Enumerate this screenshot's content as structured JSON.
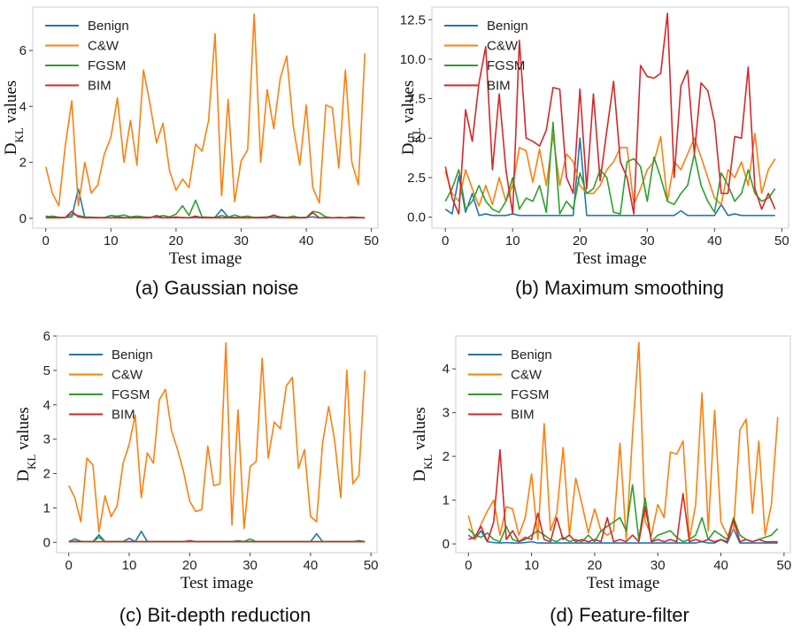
{
  "colors": {
    "Benign": "#1f77b4",
    "C&W": "#ff7f0e",
    "FGSM": "#2ca02c",
    "BIM": "#d62728"
  },
  "chart_data": [
    {
      "type": "line",
      "caption": "(a) Gaussian noise",
      "xlabel": "Test image",
      "ylabel": "D_KL values",
      "xlim": [
        -2,
        51
      ],
      "ylim": [
        -0.35,
        7.55
      ],
      "xticks": [
        0,
        10,
        20,
        30,
        40,
        50
      ],
      "yticks": [
        0,
        2,
        4,
        6
      ],
      "grid": false,
      "legend": "upper-left",
      "series": [
        {
          "name": "Benign",
          "values": [
            0.08,
            0.05,
            0.04,
            0.03,
            0.05,
            1.05,
            0.02,
            0.03,
            0.02,
            0.03,
            0.1,
            0.05,
            0.03,
            0.02,
            0.03,
            0.02,
            0.04,
            0.03,
            0.02,
            0.03,
            0.02,
            0.03,
            0.02,
            0.03,
            0.02,
            0.03,
            0.04,
            0.32,
            0.05,
            0.03,
            0.03,
            0.02,
            0.04,
            0.03,
            0.03,
            0.03,
            0.02,
            0.03,
            0.02,
            0.03,
            0.03,
            0.05,
            0.02,
            0.03,
            0.02,
            0.03,
            0.02,
            0.03,
            0.03,
            0.02
          ]
        },
        {
          "name": "C&W",
          "values": [
            1.85,
            0.9,
            0.45,
            2.6,
            4.2,
            0.45,
            2.0,
            0.9,
            1.2,
            2.3,
            2.9,
            4.3,
            2.0,
            3.5,
            1.9,
            5.3,
            4.1,
            2.7,
            3.4,
            1.7,
            1.0,
            1.4,
            1.1,
            2.65,
            2.4,
            3.5,
            6.6,
            0.8,
            4.25,
            0.6,
            2.05,
            2.45,
            7.3,
            2.0,
            4.6,
            3.2,
            5.0,
            5.8,
            3.3,
            1.9,
            4.05,
            1.1,
            0.55,
            4.05,
            3.95,
            1.8,
            5.3,
            2.0,
            1.2,
            5.9
          ]
        },
        {
          "name": "FGSM",
          "values": [
            0.05,
            0.08,
            0.04,
            0.03,
            0.15,
            0.1,
            0.05,
            0.04,
            0.03,
            0.02,
            0.1,
            0.08,
            0.12,
            0.05,
            0.08,
            0.05,
            0.03,
            0.05,
            0.1,
            0.05,
            0.15,
            0.45,
            0.1,
            0.65,
            0.05,
            0.04,
            0.02,
            0.1,
            0.04,
            0.12,
            0.05,
            0.08,
            0.03,
            0.04,
            0.05,
            0.1,
            0.05,
            0.03,
            0.08,
            0.02,
            0.03,
            0.25,
            0.2,
            0.05,
            0.02,
            0.03,
            0.02,
            0.05,
            0.03,
            0.02
          ]
        },
        {
          "name": "BIM",
          "values": [
            0.02,
            0.02,
            0.02,
            0.03,
            0.25,
            0.05,
            0.02,
            0.02,
            0.02,
            0.02,
            0.02,
            0.02,
            0.02,
            0.02,
            0.02,
            0.02,
            0.02,
            0.1,
            0.02,
            0.02,
            0.05,
            0.02,
            0.02,
            0.08,
            0.02,
            0.02,
            0.02,
            0.02,
            0.02,
            0.02,
            0.02,
            0.02,
            0.02,
            0.02,
            0.02,
            0.12,
            0.02,
            0.02,
            0.02,
            0.02,
            0.02,
            0.2,
            0.02,
            0.02,
            0.02,
            0.02,
            0.02,
            0.02,
            0.02,
            0.02
          ]
        }
      ]
    },
    {
      "type": "line",
      "caption": "(b) Maximum smoothing",
      "xlabel": "Test image",
      "ylabel": "D_KL values",
      "xlim": [
        -2,
        51
      ],
      "ylim": [
        -0.7,
        13.3
      ],
      "xticks": [
        0,
        10,
        20,
        30,
        40,
        50
      ],
      "yticks": [
        0.0,
        2.5,
        5.0,
        7.5,
        10.0,
        12.5
      ],
      "ytick_labels": [
        "0.0",
        "2.5",
        "5.0",
        "7.5",
        "10.0",
        "12.5"
      ],
      "grid": false,
      "legend": "upper-left",
      "series": [
        {
          "name": "Benign",
          "values": [
            0.5,
            0.2,
            2.6,
            0.3,
            1.5,
            0.1,
            0.2,
            0.1,
            0.1,
            0.1,
            0.2,
            0.1,
            0.1,
            0.1,
            0.1,
            0.1,
            0.1,
            0.1,
            0.1,
            0.1,
            5.0,
            0.1,
            0.1,
            0.1,
            0.1,
            0.1,
            0.1,
            0.1,
            0.1,
            0.1,
            0.1,
            0.1,
            0.1,
            0.1,
            0.1,
            0.4,
            0.1,
            0.1,
            0.1,
            0.1,
            0.1,
            0.8,
            0.1,
            0.2,
            0.1,
            0.1,
            0.1,
            0.1,
            0.1,
            0.1
          ]
        },
        {
          "name": "C&W",
          "values": [
            2.9,
            1.5,
            1.0,
            3.0,
            1.8,
            0.7,
            2.0,
            0.8,
            2.5,
            1.0,
            2.0,
            4.4,
            4.2,
            2.2,
            4.3,
            2.0,
            5.2,
            2.0,
            4.0,
            3.5,
            2.0,
            1.5,
            1.5,
            2.0,
            3.0,
            3.5,
            4.4,
            4.4,
            0.8,
            1.8,
            3.0,
            3.5,
            5.1,
            1.0,
            3.5,
            3.0,
            4.0,
            5.0,
            3.8,
            2.5,
            1.2,
            0.8,
            3.0,
            2.5,
            3.5,
            2.0,
            5.3,
            1.5,
            3.0,
            3.7
          ]
        },
        {
          "name": "FGSM",
          "values": [
            1.0,
            1.8,
            3.0,
            0.5,
            1.0,
            2.0,
            1.0,
            0.5,
            0.3,
            1.0,
            2.5,
            0.5,
            1.2,
            1.0,
            2.0,
            0.3,
            6.0,
            0.2,
            1.0,
            0.5,
            2.8,
            1.5,
            1.8,
            3.0,
            2.5,
            0.3,
            0.2,
            3.5,
            3.7,
            3.2,
            1.0,
            3.8,
            2.5,
            1.0,
            0.8,
            1.5,
            2.0,
            4.0,
            2.0,
            1.0,
            0.3,
            2.8,
            2.0,
            1.0,
            1.5,
            3.0,
            1.5,
            1.0,
            1.2,
            1.8
          ]
        },
        {
          "name": "BIM",
          "values": [
            3.2,
            1.2,
            0.2,
            6.8,
            4.8,
            8.5,
            10.8,
            3.0,
            7.8,
            3.0,
            0.2,
            11.2,
            5.0,
            4.8,
            4.5,
            5.5,
            8.2,
            8.1,
            2.5,
            1.5,
            8.1,
            1.8,
            7.8,
            2.3,
            5.5,
            8.6,
            3.5,
            2.5,
            0.2,
            9.6,
            8.9,
            8.8,
            9.1,
            12.9,
            2.5,
            8.3,
            9.3,
            4.0,
            8.5,
            8.0,
            6.0,
            1.5,
            1.5,
            5.1,
            5.0,
            9.5,
            1.8,
            0.5,
            1.5,
            0.5
          ]
        }
      ]
    },
    {
      "type": "line",
      "caption": "(c) Bit-depth reduction",
      "xlabel": "Test image",
      "ylabel": "D_KL values",
      "xlim": [
        -2,
        51
      ],
      "ylim": [
        -0.3,
        6.0
      ],
      "xticks": [
        0,
        10,
        20,
        30,
        40,
        50
      ],
      "yticks": [
        0,
        1,
        2,
        3,
        4,
        5,
        6
      ],
      "grid": false,
      "legend": "upper-left",
      "series": [
        {
          "name": "Benign",
          "values": [
            0.02,
            0.1,
            0.03,
            0.02,
            0.02,
            0.22,
            0.02,
            0.02,
            0.02,
            0.02,
            0.12,
            0.02,
            0.32,
            0.02,
            0.02,
            0.02,
            0.02,
            0.02,
            0.02,
            0.02,
            0.02,
            0.02,
            0.02,
            0.02,
            0.02,
            0.02,
            0.02,
            0.02,
            0.02,
            0.02,
            0.02,
            0.02,
            0.02,
            0.02,
            0.02,
            0.02,
            0.02,
            0.02,
            0.02,
            0.02,
            0.02,
            0.25,
            0.02,
            0.02,
            0.02,
            0.02,
            0.02,
            0.02,
            0.02,
            0.02
          ]
        },
        {
          "name": "C&W",
          "values": [
            1.65,
            1.3,
            0.6,
            2.45,
            2.25,
            0.3,
            1.35,
            0.75,
            1.05,
            2.3,
            2.85,
            3.7,
            1.3,
            2.6,
            2.3,
            4.15,
            4.45,
            3.25,
            2.7,
            2.05,
            1.2,
            0.9,
            0.95,
            2.8,
            1.65,
            1.7,
            5.8,
            0.5,
            3.85,
            0.4,
            2.2,
            2.35,
            5.35,
            2.45,
            3.5,
            3.3,
            4.55,
            4.8,
            2.15,
            2.7,
            0.75,
            0.6,
            2.9,
            3.95,
            2.95,
            1.3,
            5.0,
            1.7,
            1.95,
            5.0
          ]
        },
        {
          "name": "FGSM",
          "values": [
            0.02,
            0.03,
            0.02,
            0.02,
            0.02,
            0.15,
            0.02,
            0.02,
            0.02,
            0.02,
            0.02,
            0.02,
            0.02,
            0.02,
            0.02,
            0.02,
            0.02,
            0.02,
            0.02,
            0.02,
            0.02,
            0.02,
            0.02,
            0.02,
            0.02,
            0.02,
            0.02,
            0.02,
            0.05,
            0.02,
            0.1,
            0.02,
            0.02,
            0.02,
            0.02,
            0.02,
            0.02,
            0.02,
            0.02,
            0.02,
            0.02,
            0.02,
            0.02,
            0.02,
            0.02,
            0.02,
            0.02,
            0.02,
            0.05,
            0.02
          ]
        },
        {
          "name": "BIM",
          "values": [
            0.02,
            0.02,
            0.02,
            0.02,
            0.02,
            0.02,
            0.02,
            0.02,
            0.02,
            0.02,
            0.02,
            0.02,
            0.02,
            0.02,
            0.02,
            0.02,
            0.02,
            0.02,
            0.02,
            0.02,
            0.05,
            0.02,
            0.02,
            0.02,
            0.02,
            0.02,
            0.02,
            0.02,
            0.02,
            0.02,
            0.02,
            0.02,
            0.02,
            0.02,
            0.02,
            0.02,
            0.02,
            0.02,
            0.02,
            0.02,
            0.02,
            0.02,
            0.02,
            0.02,
            0.02,
            0.02,
            0.02,
            0.02,
            0.02,
            0.02
          ]
        }
      ]
    },
    {
      "type": "line",
      "caption": "(d) Feature-filter",
      "xlabel": "Test image",
      "ylabel": "D_KL values",
      "xlim": [
        -2,
        51
      ],
      "ylim": [
        -0.2,
        4.75
      ],
      "xticks": [
        0,
        10,
        20,
        30,
        40,
        50
      ],
      "yticks": [
        0,
        1,
        2,
        3,
        4
      ],
      "grid": false,
      "legend": "upper-left",
      "series": [
        {
          "name": "Benign",
          "values": [
            0.2,
            0.1,
            0.3,
            0.05,
            0.03,
            0.02,
            0.03,
            0.02,
            0.02,
            0.03,
            0.05,
            0.02,
            0.02,
            0.02,
            0.02,
            0.02,
            0.02,
            0.02,
            0.02,
            0.02,
            0.02,
            0.02,
            0.02,
            0.02,
            0.02,
            0.02,
            0.02,
            0.02,
            0.02,
            0.02,
            0.02,
            0.02,
            0.02,
            0.02,
            0.02,
            0.02,
            0.02,
            0.05,
            0.02,
            0.02,
            0.1,
            0.02,
            0.35,
            0.02,
            0.02,
            0.02,
            0.02,
            0.02,
            0.02,
            0.02
          ]
        },
        {
          "name": "C&W",
          "values": [
            0.65,
            0.1,
            0.45,
            0.75,
            1.0,
            0.2,
            0.85,
            0.8,
            0.2,
            0.6,
            1.6,
            0.1,
            2.75,
            0.3,
            0.7,
            2.2,
            0.2,
            1.5,
            0.9,
            0.25,
            0.8,
            0.3,
            0.2,
            0.3,
            2.3,
            0.1,
            2.5,
            4.6,
            0.5,
            0.2,
            0.9,
            0.6,
            2.1,
            2.05,
            2.35,
            0.1,
            0.9,
            3.45,
            0.3,
            3.05,
            0.5,
            0.2,
            0.3,
            2.6,
            2.85,
            0.7,
            2.35,
            0.2,
            0.9,
            2.9
          ]
        },
        {
          "name": "FGSM",
          "values": [
            0.35,
            0.2,
            0.15,
            0.25,
            0.1,
            0.05,
            0.4,
            0.1,
            0.05,
            0.1,
            0.2,
            0.3,
            0.2,
            0.1,
            0.05,
            0.15,
            0.05,
            0.1,
            0.05,
            0.2,
            0.05,
            0.3,
            0.4,
            0.5,
            0.6,
            0.3,
            1.35,
            0.1,
            1.05,
            0.05,
            0.2,
            0.25,
            0.3,
            0.15,
            0.05,
            0.1,
            0.2,
            0.6,
            0.1,
            0.3,
            0.2,
            0.1,
            0.6,
            0.2,
            0.1,
            0.05,
            0.1,
            0.15,
            0.2,
            0.35
          ]
        },
        {
          "name": "BIM",
          "values": [
            0.1,
            0.15,
            0.4,
            0.05,
            0.5,
            2.15,
            0.1,
            0.3,
            0.05,
            0.15,
            0.1,
            0.7,
            0.1,
            0.05,
            0.6,
            0.1,
            0.2,
            0.05,
            0.1,
            0.05,
            0.1,
            0.05,
            0.6,
            0.05,
            0.1,
            0.05,
            0.2,
            0.05,
            0.85,
            0.05,
            0.1,
            0.05,
            0.1,
            0.05,
            1.15,
            0.05,
            0.1,
            0.05,
            0.1,
            0.05,
            0.1,
            0.05,
            0.55,
            0.05,
            0.1,
            0.05,
            0.1,
            0.05,
            0.05,
            0.05
          ]
        }
      ]
    }
  ]
}
